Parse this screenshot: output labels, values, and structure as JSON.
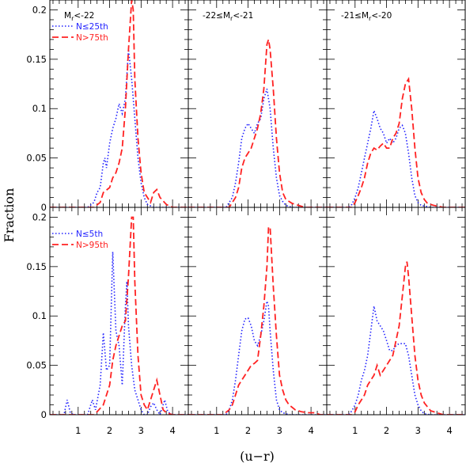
{
  "chart_data": {
    "type": "line",
    "xlabel": "(u−r)",
    "ylabel": "Fraction",
    "xlim": [
      0.1,
      4.5
    ],
    "ylim": [
      0,
      0.21
    ],
    "x_ticks": [
      "1",
      "2",
      "3",
      "4"
    ],
    "y_ticks": [
      "0",
      "0.05",
      "0.1",
      "0.15",
      "0.2"
    ],
    "panels": [
      {
        "row": 0,
        "col": 0,
        "label": "M_r<-22",
        "label_parts": {
          "main": "M",
          "sub": "r",
          "rest": "<-22"
        },
        "legend": [
          {
            "text": "N≤25th",
            "color": "#2222ff",
            "style": "dotted"
          },
          {
            "text": "N>75th",
            "color": "#ff2222",
            "style": "dashed"
          }
        ],
        "series": [
          {
            "name": "N≤25th",
            "color": "#2222ff",
            "style": "dotted",
            "x": [
              0.1,
              1.3,
              1.5,
              1.6,
              1.7,
              1.8,
              1.85,
              1.9,
              2.0,
              2.1,
              2.2,
              2.3,
              2.4,
              2.5,
              2.6,
              2.7,
              2.8,
              2.9,
              3.0,
              3.1,
              3.2,
              3.4,
              4.5
            ],
            "y": [
              0,
              0,
              0.005,
              0.015,
              0.02,
              0.045,
              0.05,
              0.04,
              0.065,
              0.08,
              0.09,
              0.105,
              0.095,
              0.11,
              0.16,
              0.13,
              0.09,
              0.05,
              0.025,
              0.01,
              0.003,
              0,
              0
            ]
          },
          {
            "name": "N>75th",
            "color": "#ff2222",
            "style": "dashed",
            "x": [
              0.1,
              1.5,
              1.7,
              1.8,
              2.0,
              2.1,
              2.2,
              2.3,
              2.4,
              2.5,
              2.6,
              2.7,
              2.75,
              2.8,
              2.9,
              3.0,
              3.1,
              3.2,
              3.3,
              3.4,
              3.5,
              3.6,
              3.8,
              4.0,
              4.5
            ],
            "y": [
              0,
              0,
              0.005,
              0.015,
              0.02,
              0.03,
              0.035,
              0.045,
              0.06,
              0.1,
              0.16,
              0.21,
              0.2,
              0.13,
              0.07,
              0.035,
              0.015,
              0.01,
              0.005,
              0.015,
              0.018,
              0.01,
              0.003,
              0,
              0
            ]
          }
        ]
      },
      {
        "row": 0,
        "col": 1,
        "label": "-22≤M_r<-21",
        "label_parts": {
          "main": "-22≤M",
          "sub": "r",
          "rest": "<-21"
        },
        "series": [
          {
            "name": "N≤25th",
            "color": "#2222ff",
            "style": "dotted",
            "x": [
              0.1,
              1.3,
              1.5,
              1.6,
              1.7,
              1.8,
              1.9,
              2.0,
              2.1,
              2.2,
              2.3,
              2.4,
              2.5,
              2.6,
              2.7,
              2.8,
              2.9,
              3.0,
              3.1,
              3.2,
              3.4,
              4.5
            ],
            "y": [
              0,
              0,
              0.01,
              0.025,
              0.045,
              0.07,
              0.08,
              0.085,
              0.08,
              0.075,
              0.085,
              0.09,
              0.11,
              0.12,
              0.1,
              0.06,
              0.03,
              0.012,
              0.006,
              0.002,
              0,
              0
            ]
          },
          {
            "name": "N>75th",
            "color": "#ff2222",
            "style": "dashed",
            "x": [
              0.1,
              1.4,
              1.6,
              1.7,
              1.8,
              1.9,
              2.0,
              2.1,
              2.2,
              2.3,
              2.4,
              2.5,
              2.6,
              2.65,
              2.7,
              2.8,
              2.9,
              3.0,
              3.1,
              3.2,
              3.4,
              3.6,
              3.8,
              4.5
            ],
            "y": [
              0,
              0,
              0.01,
              0.02,
              0.04,
              0.05,
              0.055,
              0.06,
              0.07,
              0.08,
              0.095,
              0.12,
              0.165,
              0.17,
              0.16,
              0.12,
              0.07,
              0.035,
              0.015,
              0.008,
              0.004,
              0.002,
              0,
              0
            ]
          }
        ]
      },
      {
        "row": 0,
        "col": 2,
        "label": "-21≤M_r<-20",
        "label_parts": {
          "main": "-21≤M",
          "sub": "r",
          "rest": "<-20"
        },
        "series": [
          {
            "name": "N≤25th",
            "color": "#2222ff",
            "style": "dotted",
            "x": [
              0.1,
              0.8,
              0.9,
              1.0,
              1.1,
              1.2,
              1.3,
              1.4,
              1.5,
              1.6,
              1.7,
              1.8,
              1.9,
              2.0,
              2.1,
              2.2,
              2.3,
              2.4,
              2.5,
              2.6,
              2.7,
              2.8,
              2.9,
              3.0,
              3.1,
              3.4,
              4.5
            ],
            "y": [
              0,
              0,
              0.003,
              0.01,
              0.02,
              0.035,
              0.05,
              0.065,
              0.08,
              0.098,
              0.09,
              0.08,
              0.075,
              0.065,
              0.07,
              0.065,
              0.07,
              0.08,
              0.083,
              0.075,
              0.055,
              0.03,
              0.012,
              0.005,
              0.002,
              0,
              0
            ]
          },
          {
            "name": "N>75th",
            "color": "#ff2222",
            "style": "dashed",
            "x": [
              0.1,
              0.9,
              1.0,
              1.1,
              1.2,
              1.3,
              1.4,
              1.5,
              1.6,
              1.7,
              1.8,
              1.9,
              2.0,
              2.1,
              2.2,
              2.3,
              2.4,
              2.5,
              2.6,
              2.7,
              2.8,
              2.9,
              3.0,
              3.1,
              3.2,
              3.3,
              3.5,
              3.8,
              4.5
            ],
            "y": [
              0,
              0,
              0.005,
              0.012,
              0.02,
              0.03,
              0.045,
              0.055,
              0.06,
              0.058,
              0.062,
              0.065,
              0.06,
              0.06,
              0.07,
              0.075,
              0.085,
              0.11,
              0.125,
              0.13,
              0.1,
              0.06,
              0.03,
              0.015,
              0.008,
              0.004,
              0.002,
              0,
              0
            ]
          }
        ]
      },
      {
        "row": 1,
        "col": 0,
        "legend": [
          {
            "text": "N≤5th",
            "color": "#2222ff",
            "style": "dotted"
          },
          {
            "text": "N>95th",
            "color": "#ff2222",
            "style": "dashed"
          }
        ],
        "series": [
          {
            "name": "N≤5th",
            "color": "#2222ff",
            "style": "dotted",
            "x": [
              0.1,
              0.55,
              0.65,
              0.75,
              0.85,
              1.3,
              1.45,
              1.55,
              1.7,
              1.8,
              1.9,
              2.0,
              2.1,
              2.2,
              2.3,
              2.4,
              2.5,
              2.55,
              2.6,
              2.7,
              2.8,
              2.9,
              3.0,
              3.1,
              3.2,
              3.3,
              3.4,
              3.5,
              3.6,
              3.7,
              3.75,
              3.85,
              4.0,
              4.5
            ],
            "y": [
              0,
              0,
              0.015,
              0.002,
              0,
              0,
              0.015,
              0.005,
              0.03,
              0.083,
              0.045,
              0.05,
              0.165,
              0.085,
              0.07,
              0.03,
              0.11,
              0.135,
              0.09,
              0.05,
              0.025,
              0.015,
              0.005,
              0,
              0,
              0.008,
              0.012,
              0.005,
              0,
              0.01,
              0.015,
              0.003,
              0,
              0
            ]
          },
          {
            "name": "N>95th",
            "color": "#ff2222",
            "style": "dashed",
            "x": [
              0.1,
              1.5,
              1.6,
              1.8,
              2.0,
              2.1,
              2.2,
              2.3,
              2.4,
              2.5,
              2.6,
              2.7,
              2.75,
              2.8,
              2.9,
              3.0,
              3.1,
              3.2,
              3.3,
              3.4,
              3.5,
              3.6,
              3.7,
              3.8,
              4.0,
              4.5
            ],
            "y": [
              0,
              0,
              0.003,
              0.01,
              0.03,
              0.055,
              0.07,
              0.08,
              0.09,
              0.095,
              0.14,
              0.2,
              0.2,
              0.135,
              0.06,
              0.02,
              0.01,
              0.005,
              0.015,
              0.025,
              0.035,
              0.02,
              0.005,
              0.002,
              0,
              0
            ]
          }
        ]
      },
      {
        "row": 1,
        "col": 1,
        "series": [
          {
            "name": "N≤5th",
            "color": "#2222ff",
            "style": "dotted",
            "x": [
              0.1,
              1.3,
              1.4,
              1.5,
              1.6,
              1.7,
              1.8,
              1.9,
              2.0,
              2.1,
              2.2,
              2.3,
              2.4,
              2.5,
              2.6,
              2.65,
              2.7,
              2.8,
              2.9,
              3.0,
              3.1,
              3.3,
              4.5
            ],
            "y": [
              0,
              0,
              0.005,
              0.015,
              0.035,
              0.06,
              0.085,
              0.097,
              0.098,
              0.09,
              0.075,
              0.07,
              0.08,
              0.095,
              0.115,
              0.11,
              0.085,
              0.045,
              0.015,
              0.005,
              0.002,
              0,
              0
            ]
          },
          {
            "name": "N>75th",
            "color": "#ff2222",
            "style": "dashed",
            "x": [
              0.1,
              1.2,
              1.4,
              1.5,
              1.6,
              1.7,
              1.8,
              1.9,
              2.0,
              2.1,
              2.2,
              2.3,
              2.4,
              2.5,
              2.6,
              2.65,
              2.7,
              2.8,
              2.9,
              3.0,
              3.1,
              3.2,
              3.3,
              3.5,
              3.7,
              3.9,
              4.1,
              4.3,
              4.5
            ],
            "y": [
              0,
              0,
              0.005,
              0.01,
              0.02,
              0.03,
              0.035,
              0.04,
              0.045,
              0.05,
              0.052,
              0.055,
              0.08,
              0.11,
              0.15,
              0.19,
              0.19,
              0.13,
              0.08,
              0.04,
              0.025,
              0.015,
              0.01,
              0.005,
              0.003,
              0.002,
              0.002,
              0,
              0
            ]
          }
        ]
      },
      {
        "row": 1,
        "col": 2,
        "series": [
          {
            "name": "N≤5th",
            "color": "#2222ff",
            "style": "dotted",
            "x": [
              0.1,
              0.8,
              0.9,
              1.0,
              1.1,
              1.2,
              1.3,
              1.4,
              1.5,
              1.6,
              1.7,
              1.8,
              1.9,
              2.0,
              2.1,
              2.2,
              2.3,
              2.4,
              2.5,
              2.6,
              2.7,
              2.8,
              2.9,
              3.0,
              3.1,
              3.2,
              3.4,
              4.5
            ],
            "y": [
              0,
              0,
              0.004,
              0.01,
              0.02,
              0.035,
              0.045,
              0.06,
              0.085,
              0.11,
              0.095,
              0.09,
              0.085,
              0.075,
              0.065,
              0.065,
              0.07,
              0.072,
              0.072,
              0.072,
              0.06,
              0.04,
              0.02,
              0.01,
              0.004,
              0.001,
              0,
              0
            ]
          },
          {
            "name": "N>75th",
            "color": "#ff2222",
            "style": "dashed",
            "x": [
              0.1,
              0.9,
              1.0,
              1.1,
              1.2,
              1.3,
              1.4,
              1.5,
              1.6,
              1.7,
              1.8,
              1.9,
              2.0,
              2.1,
              2.2,
              2.3,
              2.4,
              2.5,
              2.6,
              2.65,
              2.7,
              2.8,
              2.9,
              3.0,
              3.1,
              3.2,
              3.3,
              3.4,
              3.6,
              3.8,
              4.5
            ],
            "y": [
              0,
              0,
              0.003,
              0.01,
              0.015,
              0.02,
              0.03,
              0.035,
              0.04,
              0.05,
              0.04,
              0.045,
              0.05,
              0.055,
              0.06,
              0.075,
              0.09,
              0.12,
              0.15,
              0.155,
              0.14,
              0.1,
              0.06,
              0.035,
              0.02,
              0.012,
              0.008,
              0.004,
              0.002,
              0,
              0
            ]
          }
        ]
      }
    ]
  }
}
